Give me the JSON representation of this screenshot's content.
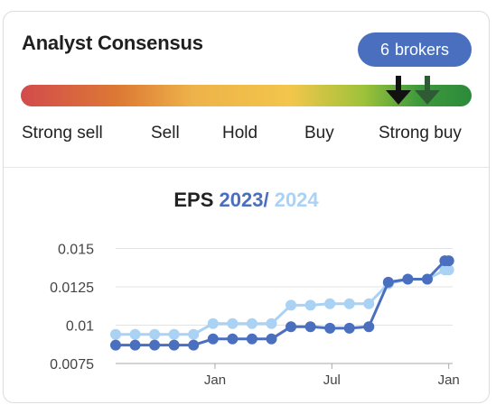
{
  "card": {
    "title": "Analyst Consensus",
    "badge_count": "6",
    "badge_label": "brokers"
  },
  "consensus": {
    "labels": [
      "Strong sell",
      "Sell",
      "Hold",
      "Buy",
      "Strong buy"
    ],
    "markers": [
      {
        "name": "current",
        "color": "#111111",
        "position": 0.84
      },
      {
        "name": "previous",
        "color": "#2e5b34",
        "position": 0.9
      }
    ]
  },
  "chart": {
    "title_prefix": "EPS",
    "year1": "2023",
    "separator": "/",
    "year2": "2024"
  },
  "chart_data": {
    "type": "line",
    "ylim": [
      0.0075,
      0.0155
    ],
    "yticks": [
      "0.015",
      "0.0125",
      "0.01",
      "0.0075"
    ],
    "ytick_values": [
      0.015,
      0.0125,
      0.01,
      0.0075
    ],
    "xticks": [
      {
        "label": "Jan",
        "x": 5.1
      },
      {
        "label": "Jul",
        "x": 11.1
      },
      {
        "label": "Jan",
        "x": 17.1
      }
    ],
    "xlim": [
      0,
      17.3
    ],
    "series": [
      {
        "name": "2023",
        "color": "#4a6fbf",
        "values": [
          0.0087,
          0.0087,
          0.0087,
          0.0087,
          0.0087,
          0.0091,
          0.0091,
          0.0091,
          0.0091,
          0.0099,
          0.0099,
          0.0098,
          0.0098,
          0.0099,
          0.0128,
          0.013,
          0.013,
          0.0142,
          0.0142
        ],
        "x": [
          0,
          1,
          2,
          3,
          4,
          5,
          6,
          7,
          8,
          9,
          10,
          11,
          12,
          13,
          14,
          15,
          16,
          16.9,
          17.1
        ]
      },
      {
        "name": "2024",
        "color": "#a9d2f5",
        "values": [
          0.0094,
          0.0094,
          0.0094,
          0.0094,
          0.0094,
          0.0101,
          0.0101,
          0.0101,
          0.0101,
          0.0113,
          0.0113,
          0.0114,
          0.0114,
          0.0114,
          0.0127,
          0.013,
          0.013,
          0.0136,
          0.0136
        ],
        "x": [
          0,
          1,
          2,
          3,
          4,
          5,
          6,
          7,
          8,
          9,
          10,
          11,
          12,
          13,
          14,
          15,
          16,
          16.9,
          17.1
        ]
      }
    ]
  }
}
